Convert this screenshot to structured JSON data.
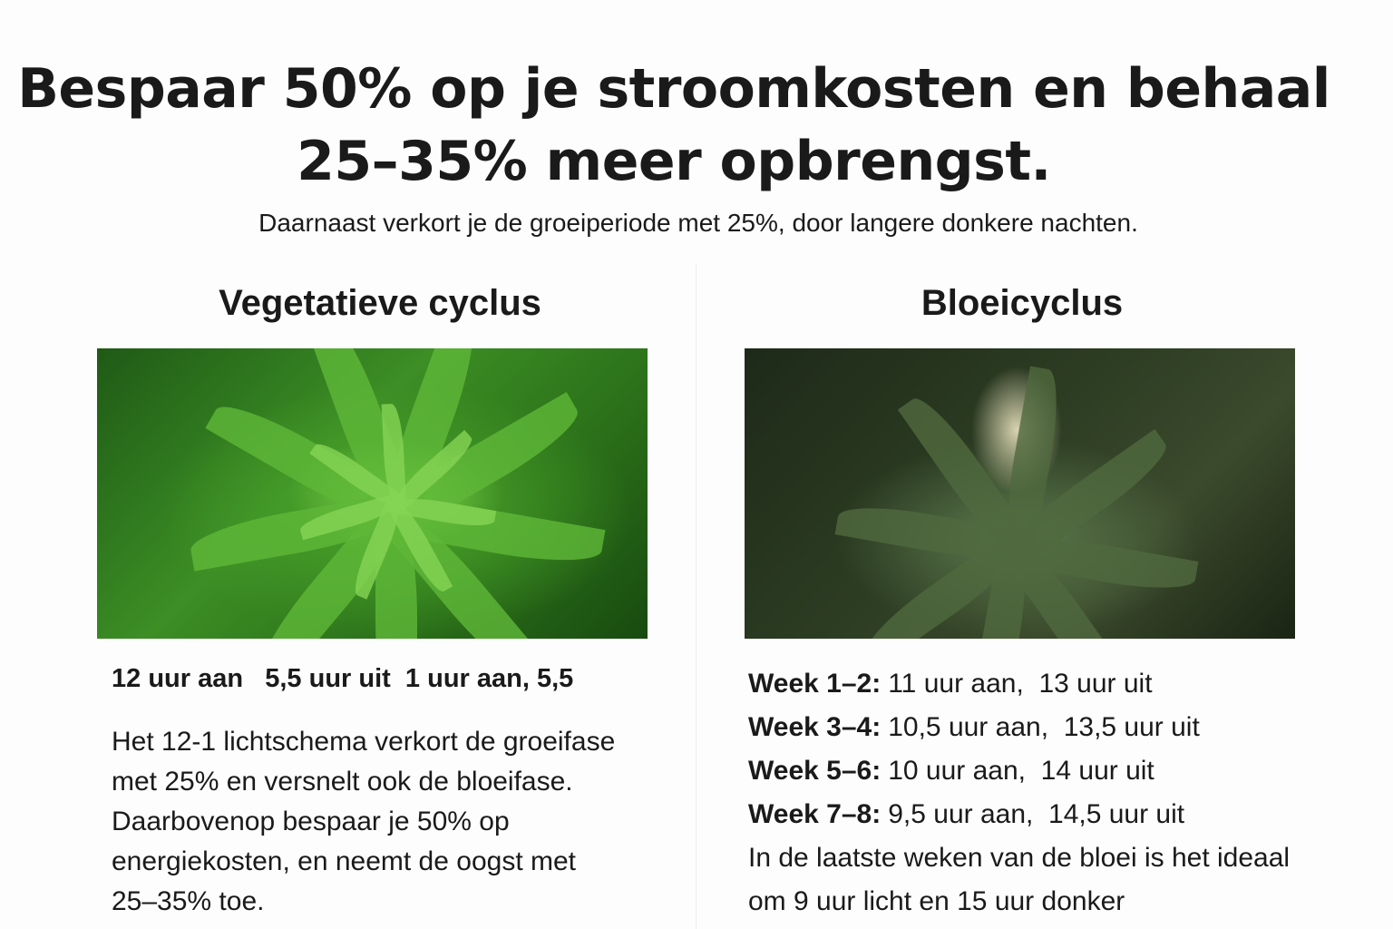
{
  "headline": "Bespaar 50% op je stroomkosten en behaal 25–35% meer opbrengst.",
  "subtitle": "Daarnaast verkort je de groeiperiode met 25%, door langere donkere nachten.",
  "vegetative": {
    "title": "Vegetatieve cyclus",
    "image": "cannabis-vegetative-leaves-photo",
    "schedule": "12 uur aan   5,5 uur uit  1 uur aan, 5,5",
    "description": "Het 12-1 lichtschema verkort de groeifase met 25% en versnelt ook de bloeifase. Daarbovenop bespaar je 50% op energiekosten, en neemt de oogst met 25–35% toe."
  },
  "flowering": {
    "title": "Bloeicyclus",
    "image": "cannabis-flowering-bud-photo",
    "weeks": [
      {
        "label": "Week 1–2:",
        "value": "11 uur aan,  13 uur uit"
      },
      {
        "label": "Week 3–4:",
        "value": "10,5 uur aan,  13,5 uur uit"
      },
      {
        "label": "Week 5–6:",
        "value": "10 uur aan,  14 uur uit"
      },
      {
        "label": "Week 7–8:",
        "value": "9,5 uur aan,  14,5 uur uit"
      }
    ],
    "note": "In de laatste weken van de bloei is het ideaal om 9 uur licht en 15 uur donker"
  }
}
